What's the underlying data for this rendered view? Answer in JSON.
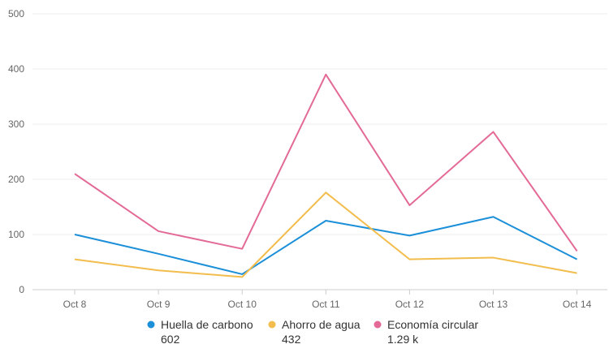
{
  "chart_data": {
    "type": "line",
    "categories": [
      "Oct 8",
      "Oct 9",
      "Oct 10",
      "Oct 11",
      "Oct 12",
      "Oct 13",
      "Oct 14"
    ],
    "y_ticks": [
      "0",
      "100",
      "200",
      "300",
      "400",
      "500"
    ],
    "ylim": [
      0,
      500
    ],
    "grid": true,
    "legend_position": "bottom",
    "series": [
      {
        "name": "Huella de carbono",
        "total": "602",
        "color": "#1b8fd8",
        "values": [
          100,
          65,
          28,
          125,
          98,
          132,
          55
        ]
      },
      {
        "name": "Ahorro de agua",
        "total": "432",
        "color": "#f2bd4c",
        "values": [
          55,
          35,
          23,
          176,
          55,
          58,
          30
        ]
      },
      {
        "name": "Economía circular",
        "total": "1.29 k",
        "color": "#e36a96",
        "values": [
          210,
          106,
          74,
          390,
          153,
          286,
          70
        ]
      }
    ]
  }
}
